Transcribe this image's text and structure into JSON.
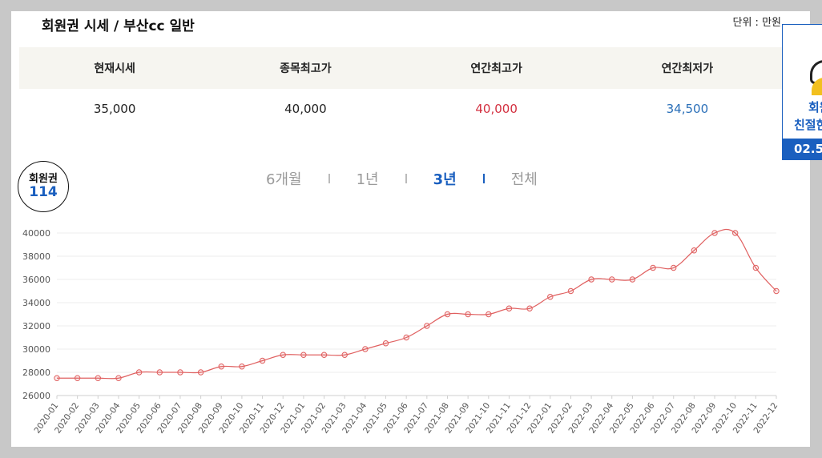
{
  "header": {
    "title": "회원권 시세 / 부산cc 일반",
    "unit": "단위 : 만원"
  },
  "stats": {
    "labels": [
      "현재시세",
      "종목최고가",
      "연간최고가",
      "연간최저가"
    ],
    "values": [
      "35,000",
      "40,000",
      "40,000",
      "34,500"
    ],
    "colors": [
      "#222222",
      "#222222",
      "#d32f3f",
      "#2a6fb8"
    ]
  },
  "logo": {
    "top": "회원권",
    "num": "114"
  },
  "tabs": [
    {
      "label": "6개월"
    },
    {
      "label": "1년"
    },
    {
      "label": "3년"
    },
    {
      "label": "전체"
    }
  ],
  "ad": {
    "line1": "회원",
    "line2": "친절한",
    "phone": "02.5"
  },
  "chart_data": {
    "type": "line",
    "title": "",
    "xlabel": "",
    "ylabel": "",
    "ylim": [
      26000,
      40000
    ],
    "yticks": [
      26000,
      28000,
      30000,
      32000,
      34000,
      36000,
      38000,
      40000
    ],
    "line_color": "#e06060",
    "categories": [
      "2020-01",
      "2020-02",
      "2020-03",
      "2020-04",
      "2020-05",
      "2020-06",
      "2020-07",
      "2020-08",
      "2020-09",
      "2020-10",
      "2020-11",
      "2020-12",
      "2021-01",
      "2021-02",
      "2021-03",
      "2021-04",
      "2021-05",
      "2021-06",
      "2021-07",
      "2021-08",
      "2021-09",
      "2021-10",
      "2021-11",
      "2021-12",
      "2022-01",
      "2022-02",
      "2022-03",
      "2022-04",
      "2022-05",
      "2022-06",
      "2022-07",
      "2022-08",
      "2022-09",
      "2022-10",
      "2022-11",
      "2022-12"
    ],
    "values": [
      27500,
      27500,
      27500,
      27500,
      28000,
      28000,
      28000,
      28000,
      28500,
      28500,
      29000,
      29500,
      29500,
      29500,
      29500,
      30000,
      30500,
      31000,
      32000,
      33000,
      33000,
      33000,
      33500,
      33500,
      34500,
      35000,
      36000,
      36000,
      36000,
      37000,
      37000,
      38500,
      40000,
      40000,
      37000,
      35000
    ]
  }
}
